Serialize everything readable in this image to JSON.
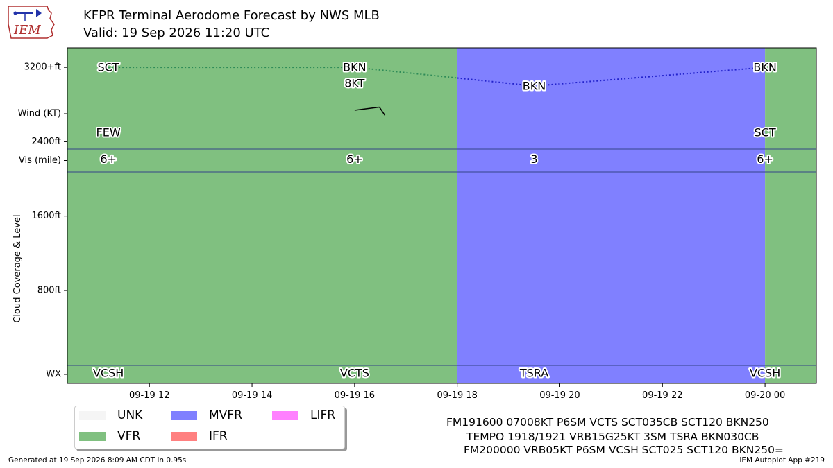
{
  "header": {
    "title_line1": "KFPR Terminal Aerodome Forecast by NWS MLB",
    "title_line2": "Valid: 19 Sep 2026 11:20 UTC",
    "logo_text": "IEM"
  },
  "colors": {
    "UNK": "#f5f5f5",
    "VFR": "#80c080",
    "MVFR": "#8080ff",
    "IFR": "#ff8080",
    "LIFR": "#ff80ff",
    "vfr_line": "#2e8b57",
    "mvfr_line": "#2222cc",
    "panel_border": "#334488"
  },
  "legend": [
    {
      "label": "UNK",
      "color": "#f5f5f5"
    },
    {
      "label": "MVFR",
      "color": "#8080ff"
    },
    {
      "label": "LIFR",
      "color": "#ff80ff"
    },
    {
      "label": "VFR",
      "color": "#80c080"
    },
    {
      "label": "IFR",
      "color": "#ff8080"
    }
  ],
  "chart_data": {
    "type": "timeline",
    "x_range_hours": [
      10.4,
      25.0
    ],
    "x_ticks": [
      {
        "hour": 12,
        "label": "09-19 12"
      },
      {
        "hour": 14,
        "label": "09-19 14"
      },
      {
        "hour": 16,
        "label": "09-19 16"
      },
      {
        "hour": 18,
        "label": "09-19 18"
      },
      {
        "hour": 20,
        "label": "09-19 20"
      },
      {
        "hour": 22,
        "label": "09-19 22"
      },
      {
        "hour": 24,
        "label": "09-20 00"
      }
    ],
    "y_labels": {
      "wind": "Wind (KT)",
      "vis": "Vis (mile)",
      "cloud_axis": "Cloud Coverage & Level",
      "wx": "WX"
    },
    "cloud_ticks": [
      {
        "ft": 800,
        "label": "800ft"
      },
      {
        "ft": 1600,
        "label": "1600ft"
      },
      {
        "ft": 2400,
        "label": "2400ft"
      },
      {
        "ft": 3200,
        "label": "3200+ft"
      }
    ],
    "cloud_ylim": [
      -200,
      3410
    ],
    "categories": [
      {
        "start": 10.4,
        "end": 18.0,
        "category": "VFR"
      },
      {
        "start": 18.0,
        "end": 24.0,
        "category": "MVFR"
      },
      {
        "start": 24.0,
        "end": 25.0,
        "category": "VFR"
      }
    ],
    "forecasts": [
      {
        "hour": 11.2,
        "vis": "6+",
        "wx": "VCSH",
        "clouds": [
          {
            "cover": "SCT",
            "ft": 3200
          },
          {
            "cover": "FEW",
            "ft": 2500
          }
        ]
      },
      {
        "hour": 16.0,
        "vis": "6+",
        "wx": "VCTS",
        "wind": "8KT",
        "wind_dir": 70,
        "clouds": [
          {
            "cover": "BKN",
            "ft": 3200
          }
        ]
      },
      {
        "hour": 19.5,
        "vis": "3",
        "wx": "TSRA",
        "clouds": [
          {
            "cover": "BKN",
            "ft": 3000
          }
        ]
      },
      {
        "hour": 24.0,
        "vis": "6+",
        "wx": "VCSH",
        "clouds": [
          {
            "cover": "BKN",
            "ft": 3200
          },
          {
            "cover": "SCT",
            "ft": 2500
          }
        ]
      }
    ],
    "ceiling_line": [
      {
        "hour": 11.2,
        "ft": 3200,
        "category": "VFR"
      },
      {
        "hour": 16.0,
        "ft": 3200,
        "category": "VFR"
      },
      {
        "hour": 19.5,
        "ft": 3000,
        "category": "MVFR"
      },
      {
        "hour": 24.0,
        "ft": 3200,
        "category": "MVFR"
      }
    ]
  },
  "taf_text": [
    "FM191600 07008KT P6SM VCTS SCT035CB SCT120 BKN250",
    "TEMPO 1918/1921 VRB15G25KT 3SM TSRA BKN030CB",
    "FM200000 VRB05KT P6SM VCSH SCT025 SCT120 BKN250="
  ],
  "footer": {
    "left": "Generated at 19 Sep 2026 8:09 AM CDT in 0.95s",
    "right": "IEM Autoplot App #219"
  }
}
